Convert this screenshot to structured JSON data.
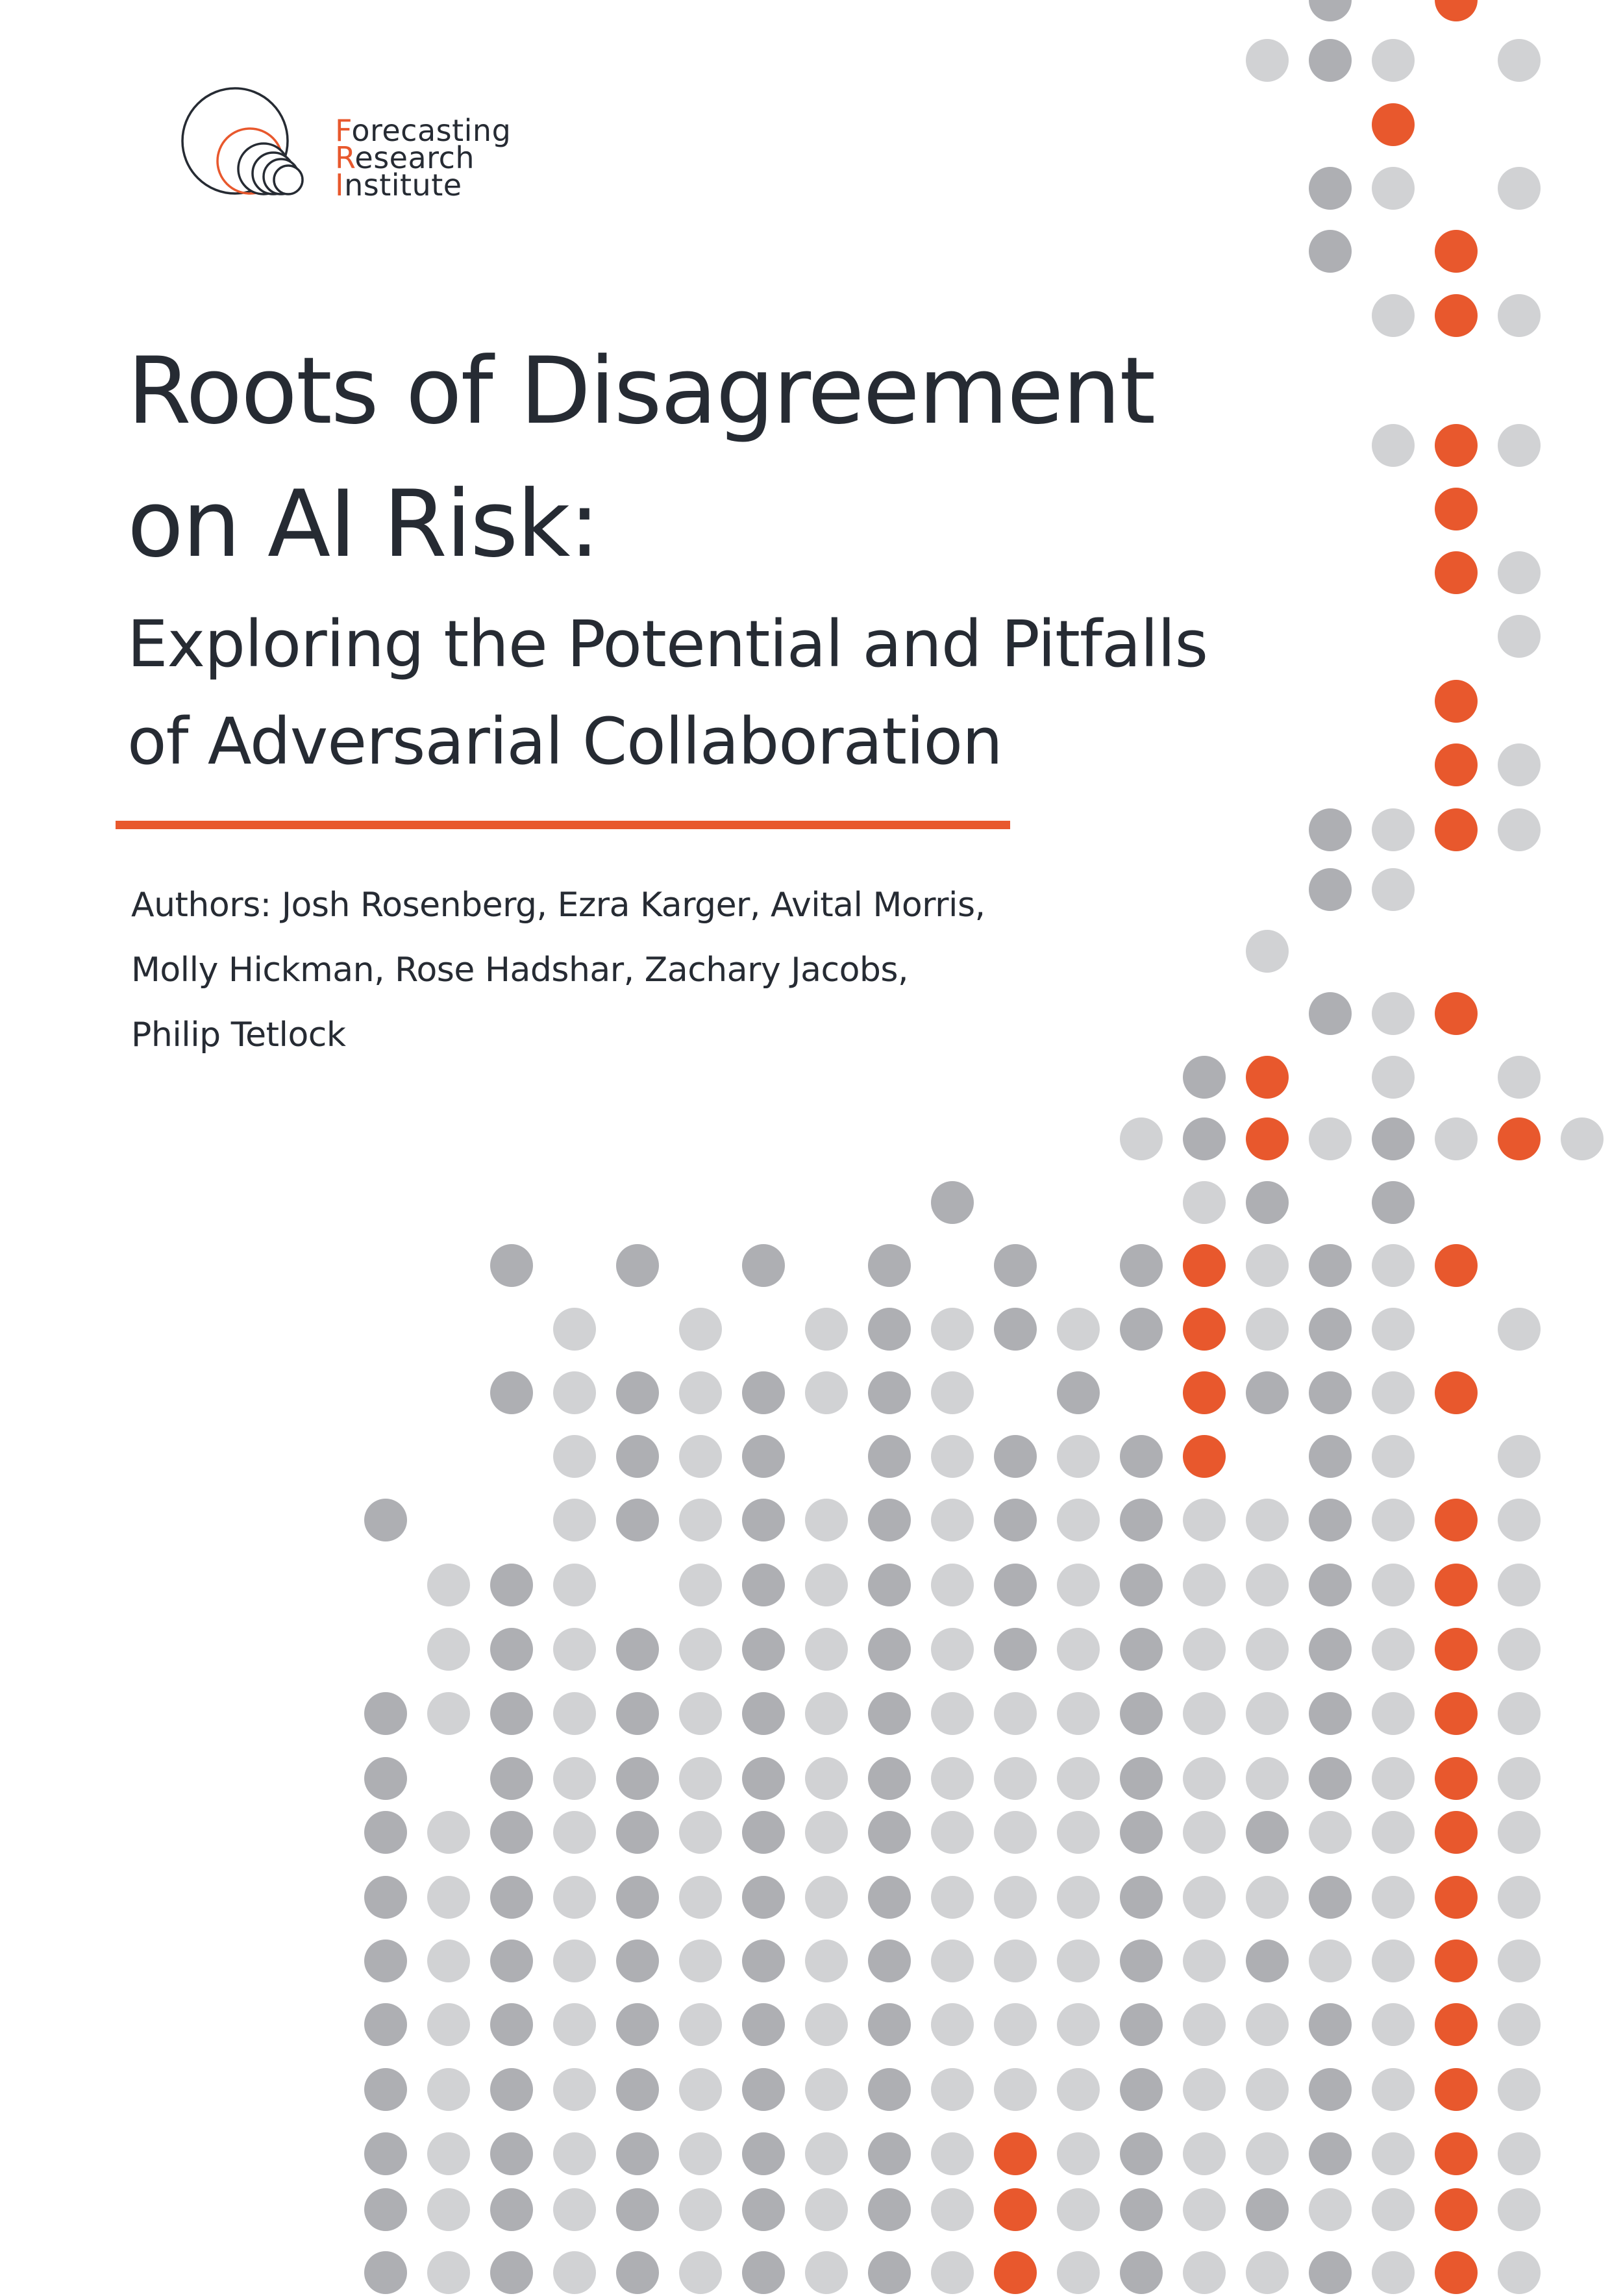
{
  "logo": {
    "lines": [
      {
        "initial": "F",
        "rest": "orecasting"
      },
      {
        "initial": "R",
        "rest": "esearch"
      },
      {
        "initial": "I",
        "rest": "nstitute"
      }
    ]
  },
  "title": {
    "line1": "Roots of Disagreement",
    "line2": "on AI Risk:"
  },
  "subtitle": {
    "line1": "Exploring the Potential and Pitfalls",
    "line2": "of Adversarial Collaboration"
  },
  "authors": {
    "line1": "Authors: Josh Rosenberg, Ezra Karger, Avital Morris,",
    "line2": "Molly Hickman, Rose Hadshar, Zachary Jacobs,",
    "line3": "Philip Tetlock"
  },
  "colors": {
    "accent": "#e8582d",
    "dark_dot": "#aeafb3",
    "light_dot": "#d1d2d4",
    "text": "#262b33"
  }
}
